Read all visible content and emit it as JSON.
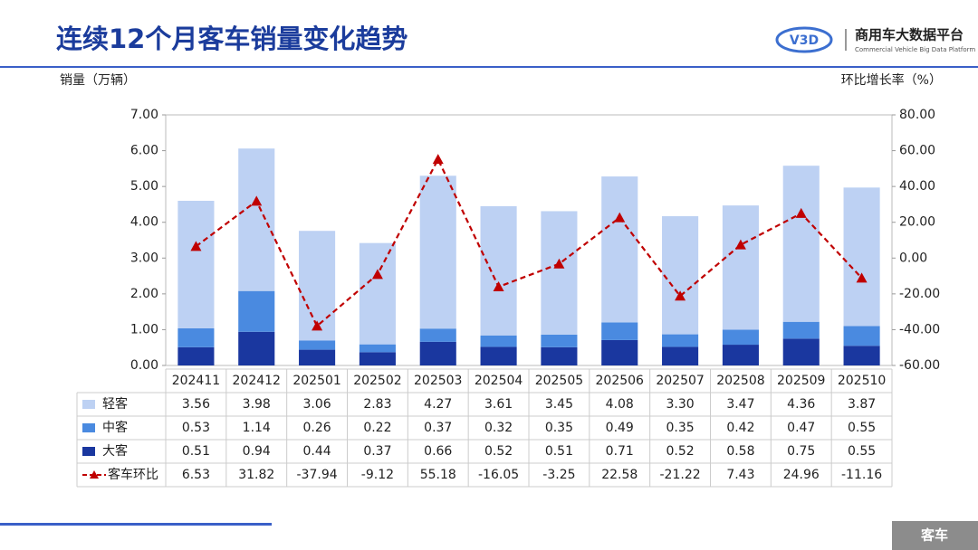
{
  "header": {
    "logo_name": "商用车大数据平台",
    "logo_subtitle": "Commercial Vehicle Big Data Platform",
    "footer_tag": "客车"
  },
  "chart_data": {
    "type": "bar",
    "stacked": true,
    "title": "连续12个月客车销量变化趋势",
    "y_label": "销量（万辆）",
    "y2_label": "环比增长率（%）",
    "categories": [
      "202411",
      "202412",
      "202501",
      "202502",
      "202503",
      "202504",
      "202505",
      "202506",
      "202507",
      "202508",
      "202509",
      "202510"
    ],
    "series": [
      {
        "name": "大客",
        "color": "#1a379f",
        "values": [
          0.51,
          0.94,
          0.44,
          0.37,
          0.66,
          0.52,
          0.51,
          0.71,
          0.52,
          0.58,
          0.75,
          0.55
        ],
        "value_labels": [
          "0.51",
          "0.94",
          "0.44",
          "0.37",
          "0.66",
          "0.52",
          "0.51",
          "0.71",
          "0.52",
          "0.58",
          "0.75",
          "0.55"
        ]
      },
      {
        "name": "中客",
        "color": "#4a8ae0",
        "values": [
          0.53,
          1.14,
          0.26,
          0.22,
          0.37,
          0.32,
          0.35,
          0.49,
          0.35,
          0.42,
          0.47,
          0.55
        ],
        "value_labels": [
          "0.53",
          "1.14",
          "0.26",
          "0.22",
          "0.37",
          "0.32",
          "0.35",
          "0.49",
          "0.35",
          "0.42",
          "0.47",
          "0.55"
        ]
      },
      {
        "name": "轻客",
        "color": "#bdd1f3",
        "values": [
          3.56,
          3.98,
          3.06,
          2.83,
          4.27,
          3.61,
          3.45,
          4.08,
          3.3,
          3.47,
          4.36,
          3.87
        ],
        "value_labels": [
          "3.56",
          "3.98",
          "3.06",
          "2.83",
          "4.27",
          "3.61",
          "3.45",
          "4.08",
          "3.30",
          "3.47",
          "4.36",
          "3.87"
        ]
      },
      {
        "name": "客车环比",
        "color": "#c00000",
        "type": "line",
        "axis": "y2",
        "values": [
          6.53,
          31.82,
          -37.94,
          -9.12,
          55.18,
          -16.05,
          -3.25,
          22.58,
          -21.22,
          7.43,
          24.96,
          -11.16
        ],
        "value_labels": [
          "6.53",
          "31.82",
          "-37.94",
          "-9.12",
          "55.18",
          "-16.05",
          "-3.25",
          "22.58",
          "-21.22",
          "7.43",
          "24.96",
          "-11.16"
        ]
      }
    ],
    "ylim": [
      0,
      7
    ],
    "yticks": [
      {
        "value": 0,
        "label": "0.00"
      },
      {
        "value": 1,
        "label": "1.00"
      },
      {
        "value": 2,
        "label": "2.00"
      },
      {
        "value": 3,
        "label": "3.00"
      },
      {
        "value": 4,
        "label": "4.00"
      },
      {
        "value": 5,
        "label": "5.00"
      },
      {
        "value": 6,
        "label": "6.00"
      },
      {
        "value": 7,
        "label": "7.00"
      }
    ],
    "y2lim": [
      -60,
      80
    ],
    "y2ticks": [
      {
        "value": -60,
        "label": "-60.00"
      },
      {
        "value": -40,
        "label": "-40.00"
      },
      {
        "value": -20,
        "label": "-20.00"
      },
      {
        "value": 0,
        "label": "0.00"
      },
      {
        "value": 20,
        "label": "20.00"
      },
      {
        "value": 40,
        "label": "40.00"
      },
      {
        "value": 60,
        "label": "60.00"
      },
      {
        "value": 80,
        "label": "80.00"
      }
    ]
  }
}
